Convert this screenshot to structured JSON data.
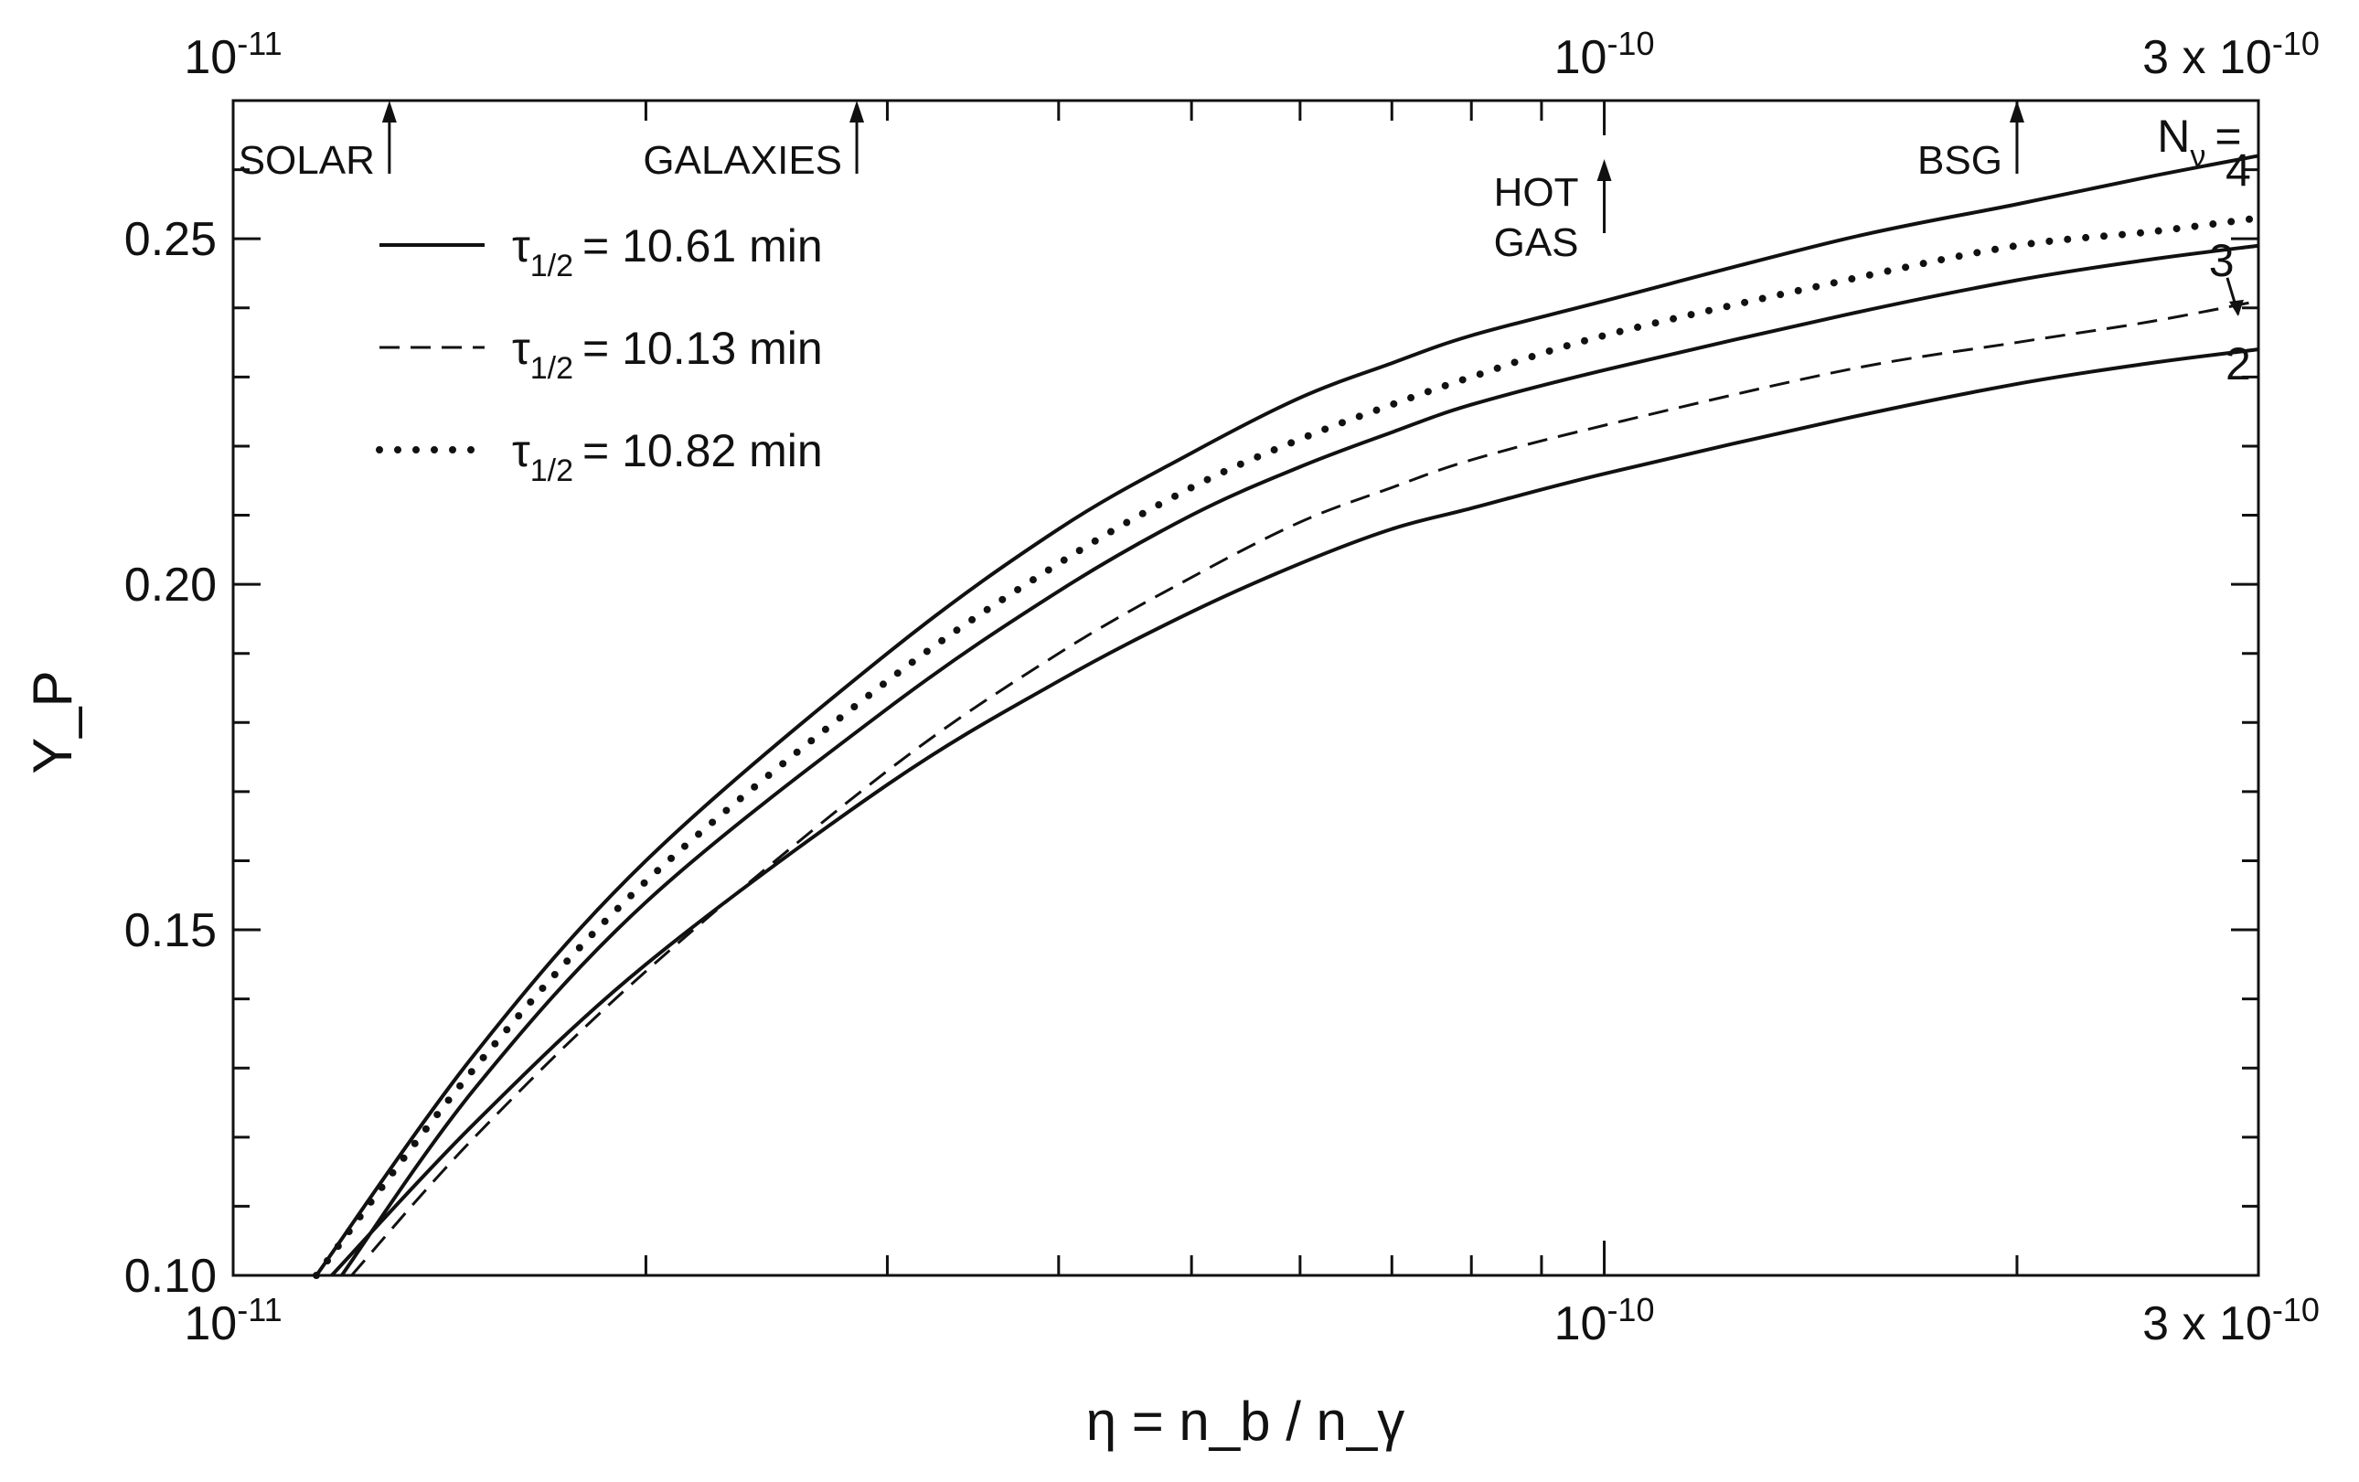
{
  "chart_data": {
    "type": "line",
    "title": "",
    "xlabel": "η = n_b / n_γ",
    "ylabel": "Y_P",
    "x_scale": "log",
    "xlim": [
      1e-11,
      3e-10
    ],
    "ylim": [
      0.1,
      0.27
    ],
    "grid": false,
    "legend_position": "top-left",
    "x_tick_labels": [
      {
        "value": 1e-11,
        "label": "10",
        "exp": "-11"
      },
      {
        "value": 1e-10,
        "label": "10",
        "exp": "-10"
      },
      {
        "value": 3e-10,
        "label": "3 x 10",
        "exp": "-10"
      }
    ],
    "y_ticks": [
      {
        "value": 0.1,
        "label": "0.10"
      },
      {
        "value": 0.15,
        "label": "0.15"
      },
      {
        "value": 0.2,
        "label": "0.20"
      },
      {
        "value": 0.25,
        "label": "0.25"
      }
    ],
    "legend": [
      {
        "style": "solid",
        "symbol": "τ",
        "sub": "1/2",
        "text": "= 10.61 min"
      },
      {
        "style": "dashed",
        "symbol": "τ",
        "sub": "1/2",
        "text": "= 10.13 min"
      },
      {
        "style": "dotted",
        "symbol": "τ",
        "sub": "1/2",
        "text": "= 10.82 min"
      }
    ],
    "series": [
      {
        "style": "solid",
        "x": [
          1.15e-11,
          1.5e-11,
          2e-11,
          3e-11,
          4e-11,
          5e-11,
          6e-11,
          7e-11,
          8e-11,
          1e-10,
          1.5e-10,
          2e-10,
          2.5e-10,
          3e-10
        ],
        "y": [
          0.1,
          0.132,
          0.16,
          0.19,
          0.208,
          0.219,
          0.227,
          0.232,
          0.236,
          0.241,
          0.25,
          0.255,
          0.259,
          0.262
        ]
      },
      {
        "style": "dotted",
        "x": [
          1.15e-11,
          1.5e-11,
          2e-11,
          3e-11,
          4e-11,
          5e-11,
          6e-11,
          7e-11,
          8e-11,
          1e-10,
          1.5e-10,
          2e-10,
          2.5e-10,
          3e-10
        ],
        "y": [
          0.1,
          0.13,
          0.157,
          0.186,
          0.203,
          0.214,
          0.221,
          0.226,
          0.23,
          0.236,
          0.244,
          0.249,
          0.251,
          0.253
        ]
      },
      {
        "style": "solid",
        "x": [
          1.2e-11,
          1.5e-11,
          2e-11,
          3e-11,
          4e-11,
          5e-11,
          6e-11,
          7e-11,
          8e-11,
          1e-10,
          1.5e-10,
          2e-10,
          2.5e-10,
          3e-10
        ],
        "y": [
          0.1,
          0.127,
          0.154,
          0.182,
          0.199,
          0.21,
          0.217,
          0.222,
          0.226,
          0.231,
          0.239,
          0.244,
          0.247,
          0.249
        ]
      },
      {
        "style": "dashed",
        "x": [
          1.22e-11,
          1.5e-11,
          2e-11,
          3e-11,
          4e-11,
          5e-11,
          6e-11,
          7e-11,
          8e-11,
          1e-10,
          1.5e-10,
          2e-10,
          2.5e-10,
          3e-10
        ],
        "y": [
          0.1,
          0.12,
          0.144,
          0.173,
          0.19,
          0.201,
          0.209,
          0.214,
          0.218,
          0.223,
          0.231,
          0.235,
          0.238,
          0.241
        ]
      },
      {
        "style": "solid",
        "x": [
          1.18e-11,
          1.5e-11,
          2e-11,
          3e-11,
          4e-11,
          5e-11,
          6e-11,
          7e-11,
          8e-11,
          1e-10,
          1.5e-10,
          2e-10,
          2.5e-10,
          3e-10
        ],
        "y": [
          0.1,
          0.122,
          0.145,
          0.171,
          0.186,
          0.196,
          0.203,
          0.208,
          0.211,
          0.216,
          0.224,
          0.229,
          0.232,
          0.234
        ]
      }
    ],
    "curve_labels": [
      {
        "text": "4",
        "x": 2.9e-10,
        "y": 0.26
      },
      {
        "text": "3",
        "x": 2.82e-10,
        "y": 0.247
      },
      {
        "text": "2",
        "x": 2.9e-10,
        "y": 0.232
      }
    ],
    "nu_label": {
      "text": "N",
      "sub": "ν",
      "suffix": "=",
      "x": 2.65e-10,
      "y": 0.265
    },
    "annotations": [
      {
        "text": "SOLAR",
        "x": 1.3e-11,
        "y": 0.263,
        "arrow": true,
        "lines": [
          "SOLAR"
        ]
      },
      {
        "text": "GALAXIES",
        "x": 2.85e-11,
        "y": 0.263,
        "arrow": true,
        "lines": [
          "GALAXIES"
        ]
      },
      {
        "text": "HOT GAS",
        "x": 1e-10,
        "y": 0.26,
        "arrow": true,
        "lines": [
          "HOT",
          "GAS"
        ]
      },
      {
        "text": "BSG",
        "x": 2e-10,
        "y": 0.263,
        "arrow": true,
        "lines": [
          "BSG"
        ]
      }
    ]
  }
}
